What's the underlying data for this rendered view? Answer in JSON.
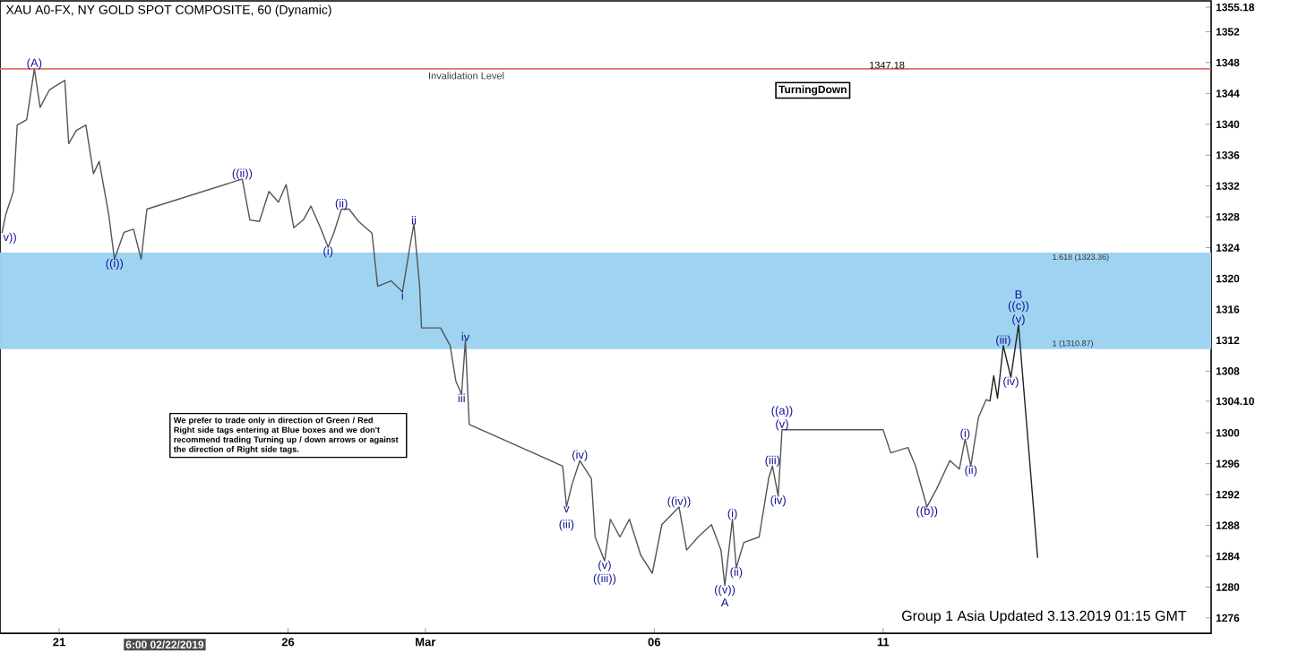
{
  "chart_data": {
    "type": "line",
    "title": "XAU A0-FX, NY GOLD SPOT COMPOSITE, 60 (Dynamic)",
    "xlim": [
      "2019-02-19T17:00",
      "2019-03-18T04:00"
    ],
    "xticks": [
      {
        "value": "2019-02-21",
        "label": "21"
      },
      {
        "value": "2019-02-26",
        "label": "26"
      },
      {
        "value": "2019-03-01",
        "label": "Mar"
      },
      {
        "value": "2019-03-06",
        "label": "06"
      },
      {
        "value": "2019-03-11",
        "label": "11"
      }
    ],
    "ylim": [
      1274,
      1356
    ],
    "yticks": [
      1276,
      1280,
      1284,
      1288,
      1292,
      1296,
      1300,
      {
        "value": 1304.1,
        "label": "1304.10"
      },
      1308,
      1312,
      1316,
      1320,
      1324,
      1328,
      1332,
      1336,
      1340,
      1344,
      1348,
      1352,
      {
        "value": 1355.18,
        "label": "1355.18"
      }
    ],
    "marker": "none",
    "series": [
      {
        "color": "#555555",
        "x": [
          "2019-02-19T18:00",
          "2019-02-19T20:00",
          "2019-02-20T00:00",
          "2019-02-20T02:00",
          "2019-02-20T07:00",
          "2019-02-20T11:00",
          "2019-02-20T14:00",
          "2019-02-20T19:00",
          "2019-02-21T03:00",
          "2019-02-21T05:00",
          "2019-02-21T09:00",
          "2019-02-21T14:00",
          "2019-02-21T18:00",
          "2019-02-21T21:00",
          "2019-02-22T02:00",
          "2019-02-22T05:00",
          "2019-02-22T10:00",
          "2019-02-22T15:00",
          "2019-02-22T19:00",
          "2019-02-22T22:00",
          "2019-02-25T00:00",
          "2019-02-25T04:00",
          "2019-02-25T09:00",
          "2019-02-25T14:00",
          "2019-02-25T19:00",
          "2019-02-25T23:00",
          "2019-02-26T03:00",
          "2019-02-26T08:00",
          "2019-02-26T12:00",
          "2019-02-26T17:00",
          "2019-02-26T21:00",
          "2019-02-27T00:00",
          "2019-02-27T04:00",
          "2019-02-27T08:00",
          "2019-02-27T13:00",
          "2019-02-27T20:00",
          "2019-02-27T23:00",
          "2019-02-28T06:00",
          "2019-02-28T12:00",
          "2019-02-28T16:00",
          "2019-02-28T18:00",
          "2019-02-28T21:00",
          "2019-02-28T22:00",
          "2019-03-01T08:00",
          "2019-03-01T13:00",
          "2019-03-01T16:00",
          "2019-03-01T19:00",
          "2019-03-01T21:00",
          "2019-03-01T23:00",
          "2019-03-04T00:00",
          "2019-03-04T02:00",
          "2019-03-04T05:00",
          "2019-03-04T09:00",
          "2019-03-04T15:00",
          "2019-03-04T17:00",
          "2019-03-04T22:00",
          "2019-03-05T01:00",
          "2019-03-05T06:00",
          "2019-03-05T11:00",
          "2019-03-05T17:00",
          "2019-03-05T23:00",
          "2019-03-06T04:00",
          "2019-03-06T13:00",
          "2019-03-06T17:00",
          "2019-03-06T23:00",
          "2019-03-07T06:00",
          "2019-03-07T11:00",
          "2019-03-07T13:00",
          "2019-03-07T17:00",
          "2019-03-07T19:00",
          "2019-03-07T23:00",
          "2019-03-08T07:00",
          "2019-03-08T12:00",
          "2019-03-08T14:00",
          "2019-03-08T17:00",
          "2019-03-08T19:00",
          "2019-03-11T00:00",
          "2019-03-11T04:00",
          "2019-03-11T13:00",
          "2019-03-11T17:00",
          "2019-03-11T23:00",
          "2019-03-12T04:00",
          "2019-03-12T11:00",
          "2019-03-12T16:00",
          "2019-03-12T19:00",
          "2019-03-12T22:00",
          "2019-03-13T02:00",
          "2019-03-13T06:00",
          "2019-03-13T08:00"
        ],
        "values": [
          1325.9,
          1328.3,
          1331.3,
          1339.9,
          1340.6,
          1347.2,
          1342.2,
          1344.5,
          1345.7,
          1337.5,
          1339.2,
          1339.9,
          1333.6,
          1335.2,
          1328.3,
          1322.5,
          1326,
          1326.4,
          1322.5,
          1329,
          1332.9,
          1327.6,
          1327.4,
          1331.3,
          1329.9,
          1332.2,
          1326.6,
          1327.6,
          1329.4,
          1326.6,
          1324.1,
          1325.9,
          1329,
          1329,
          1327.4,
          1325.9,
          1319,
          1319.7,
          1318.3,
          1324.3,
          1327.1,
          1319,
          1313.6,
          1313.6,
          1311.3,
          1306.7,
          1305,
          1312,
          1301.1,
          1295.7,
          1290.4,
          1293.4,
          1296.4,
          1294.1,
          1286.5,
          1283.4,
          1288.8,
          1286.5,
          1288.8,
          1284.1,
          1281.8,
          1288.1,
          1290.4,
          1284.8,
          1286.5,
          1288.1,
          1284.8,
          1280.2,
          1288.8,
          1282.5,
          1285.8,
          1286.5,
          1294.1,
          1295.7,
          1291.8,
          1300.4,
          1300.4,
          1297.4,
          1298.1,
          1295.7,
          1290.4,
          1292.7,
          1296.4,
          1295.3,
          1299.2,
          1295.7,
          1302,
          1304.3,
          1304.1
        ]
      },
      {
        "color": "#222222",
        "x": [
          "2019-03-13T08:00",
          "2019-03-13T10:00",
          "2019-03-13T12:00",
          "2019-03-13T15:00",
          "2019-03-13T19:00",
          "2019-03-13T23:00",
          "2019-03-14T09:00"
        ],
        "values": [
          1304.1,
          1307.4,
          1304.5,
          1311.3,
          1307.2,
          1314,
          1283.8
        ]
      }
    ],
    "ref_lines": [
      {
        "axis": "y",
        "value": 1347.18,
        "label": "Invalidation Level",
        "color": "#e07070"
      }
    ],
    "bands": [
      {
        "axis": "y",
        "from": 1310.87,
        "to": 1323.36,
        "color": "#9fd3f2"
      }
    ],
    "annotations": [
      {
        "text": "(A)",
        "x": "2019-02-20T11:00",
        "y": 1347.2
      },
      {
        "text": "v))",
        "x": "2019-02-19T18:00",
        "y": 1325.9
      },
      {
        "text": "((i))",
        "x": "2019-02-22T05:00",
        "y": 1322.5
      },
      {
        "text": "((ii))",
        "x": "2019-02-25T00:00",
        "y": 1332.9
      },
      {
        "text": "(i)",
        "x": "2019-02-26T21:00",
        "y": 1324.1
      },
      {
        "text": "(ii)",
        "x": "2019-02-27T04:00",
        "y": 1329
      },
      {
        "text": "i",
        "x": "2019-02-28T12:00",
        "y": 1318.3
      },
      {
        "text": "ii",
        "x": "2019-02-28T18:00",
        "y": 1327.1
      },
      {
        "text": "iii",
        "x": "2019-03-01T19:00",
        "y": 1305
      },
      {
        "text": "iv",
        "x": "2019-03-01T21:00",
        "y": 1312
      },
      {
        "text": "v",
        "x": "2019-03-04T02:00",
        "y": 1290.4
      },
      {
        "text": "(iii)",
        "x": "2019-03-04T02:00",
        "y": 1290.4
      },
      {
        "text": "(iv)",
        "x": "2019-03-04T09:00",
        "y": 1296.4
      },
      {
        "text": "(v)",
        "x": "2019-03-04T22:00",
        "y": 1283.4
      },
      {
        "text": "((iii))",
        "x": "2019-03-04T22:00",
        "y": 1283.4
      },
      {
        "text": "((iv))",
        "x": "2019-03-06T13:00",
        "y": 1290.4
      },
      {
        "text": "((v))",
        "x": "2019-03-07T13:00",
        "y": 1280.2
      },
      {
        "text": "A",
        "x": "2019-03-07T13:00",
        "y": 1280.2
      },
      {
        "text": "(i)",
        "x": "2019-03-07T17:00",
        "y": 1288.8
      },
      {
        "text": "(ii)",
        "x": "2019-03-07T19:00",
        "y": 1282.5
      },
      {
        "text": "(iii)",
        "x": "2019-03-08T14:00",
        "y": 1295.7
      },
      {
        "text": "(iv)",
        "x": "2019-03-08T17:00",
        "y": 1291.8
      },
      {
        "text": "(v)",
        "x": "2019-03-08T19:00",
        "y": 1300.4
      },
      {
        "text": "((a))",
        "x": "2019-03-08T19:00",
        "y": 1300.4
      },
      {
        "text": "((b))",
        "x": "2019-03-11T23:00",
        "y": 1290.4
      },
      {
        "text": "(i)",
        "x": "2019-03-12T19:00",
        "y": 1299.2
      },
      {
        "text": "(ii)",
        "x": "2019-03-12T22:00",
        "y": 1295.7
      },
      {
        "text": "(iii)",
        "x": "2019-03-13T15:00",
        "y": 1311.3
      },
      {
        "text": "(iv)",
        "x": "2019-03-13T19:00",
        "y": 1307.2
      },
      {
        "text": "(v)",
        "x": "2019-03-13T23:00",
        "y": 1314
      },
      {
        "text": "((c))",
        "x": "2019-03-13T23:00",
        "y": 1314
      },
      {
        "text": "B",
        "x": "2019-03-13T23:00",
        "y": 1314
      },
      {
        "text": "1347.18",
        "x": "2019-03-11T02:00",
        "y": 1347.18
      },
      {
        "text": "1.618 (1323.36)",
        "x": "2019-03-14T16:00",
        "y": 1323.36
      },
      {
        "text": "1 (1310.87)",
        "x": "2019-03-14T16:00",
        "y": 1310.87
      },
      "TurningDown",
      "We prefer to trade only in direction of Green / Red Right side tags entering at Blue boxes and we don't recommend trading Turning up / down arrows or against the direction of Right side tags.",
      "Group 1  Asia Updated 3.13.2019 01:15 GMT",
      "6:00 02/22/2019"
    ]
  }
}
